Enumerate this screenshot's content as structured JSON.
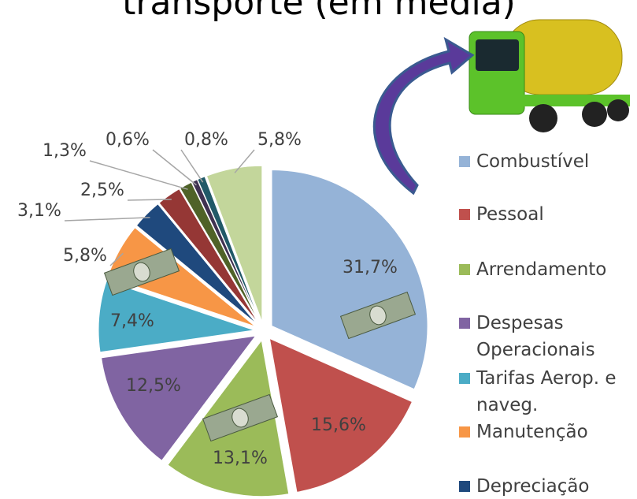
{
  "chart_data": {
    "type": "pie",
    "title": "transporte (em média)",
    "series": [
      {
        "name": "Combustível",
        "color": "#95B3D7"
      },
      {
        "name": "Pessoal",
        "color": "#C0504D"
      },
      {
        "name": "Arrendamento",
        "color": "#9BBB59"
      },
      {
        "name": "Despesas Operacionais",
        "color": "#8064A2"
      },
      {
        "name": "Tarifas Aerop. e naveg.",
        "color": "#4BACC6"
      },
      {
        "name": "Manutenção",
        "color": "#F79646"
      },
      {
        "name": "Depreciação",
        "color": "#1F497D"
      },
      {
        "name": null,
        "color": "#953735"
      },
      {
        "name": null,
        "color": "#4F6228"
      },
      {
        "name": null,
        "color": "#3F3151"
      },
      {
        "name": null,
        "color": "#215968"
      },
      {
        "name": null,
        "color": "#C3D69B"
      }
    ],
    "values": [
      31.7,
      15.6,
      13.1,
      12.5,
      7.4,
      5.8,
      3.1,
      2.5,
      1.3,
      0.6,
      0.8,
      5.8
    ],
    "value_labels": [
      "31,7%",
      "15,6%",
      "13,1%",
      "12,5%",
      "7,4%",
      "5,8%",
      "3,1%",
      "2,5%",
      "1,3%",
      "0,6%",
      "0,8%",
      "5,8%"
    ]
  }
}
